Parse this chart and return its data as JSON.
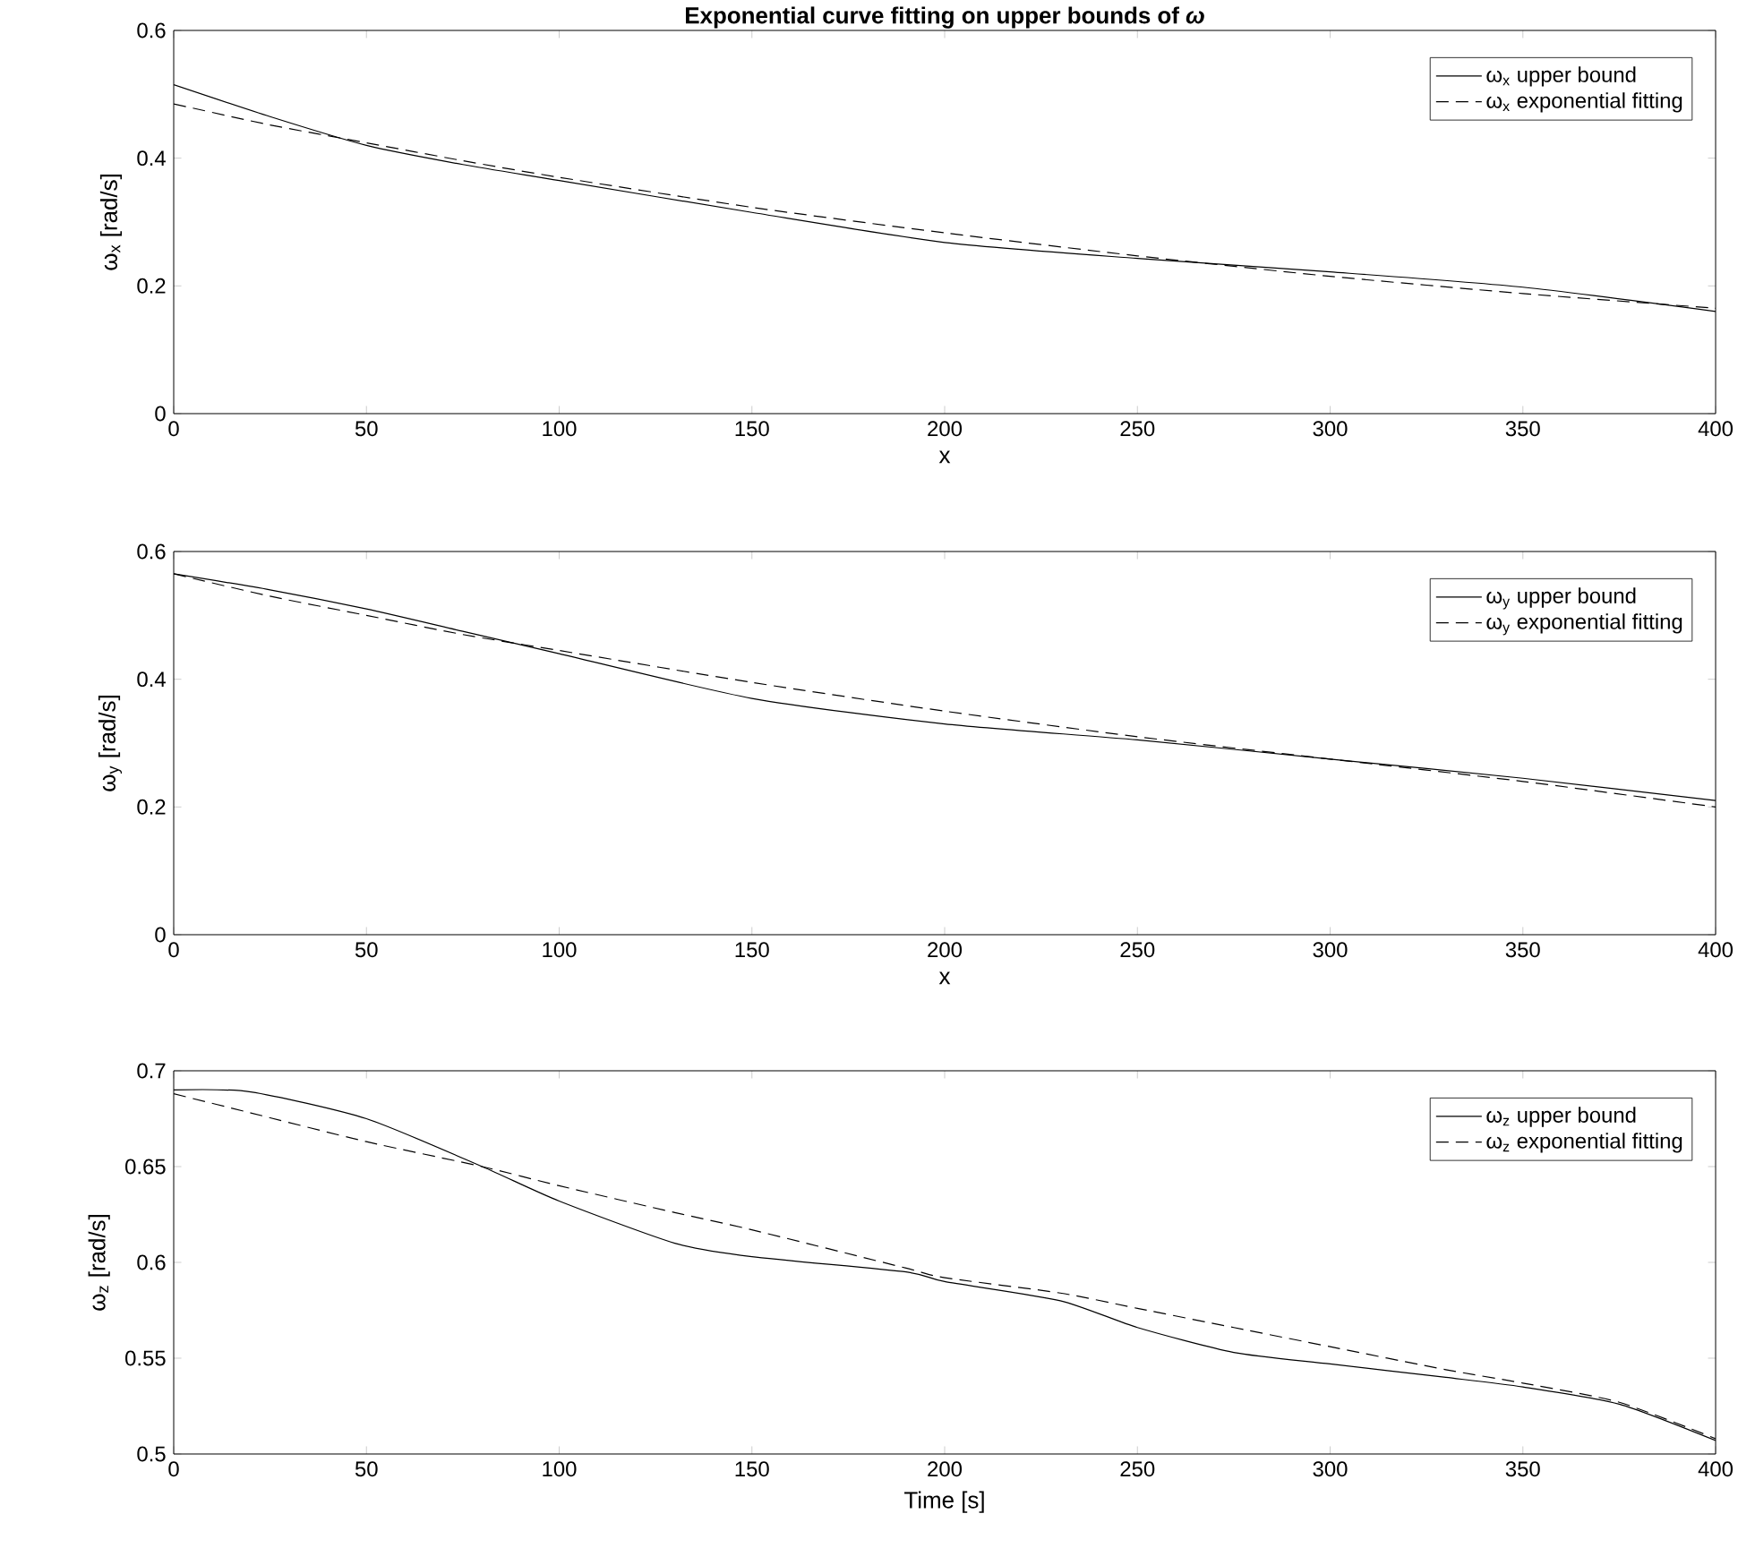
{
  "chart_data": [
    {
      "type": "line",
      "title": "Exponential curve fitting on upper bounds of *ω*",
      "xlabel": "x",
      "ylabel": "ω$_{x}$ [rad/s]",
      "legend": "top right",
      "xlim": [
        0,
        400
      ],
      "ylim": [
        0,
        0.6
      ],
      "xticks": [
        0,
        50,
        100,
        150,
        200,
        250,
        300,
        350,
        400
      ],
      "yticks": [
        0,
        0.2,
        0.4,
        0.6
      ],
      "x": [
        0,
        25,
        50,
        75,
        100,
        150,
        200,
        250,
        300,
        350,
        400
      ],
      "series": [
        {
          "name": "ω$_{x}$ upper bound",
          "color": "#000000",
          "line_style": "solid",
          "values": [
            0.515,
            0.465,
            0.42,
            0.39,
            0.365,
            0.315,
            0.268,
            0.243,
            0.222,
            0.198,
            0.16
          ]
        },
        {
          "name": "ω$_{x}$ exponential fitting",
          "color": "#000000",
          "line_style": "dashed",
          "values": [
            0.485,
            0.452,
            0.424,
            0.396,
            0.37,
            0.323,
            0.283,
            0.247,
            0.215,
            0.188,
            0.165
          ]
        }
      ]
    },
    {
      "type": "line",
      "xlabel": "x",
      "ylabel": "ω$_{y}$ [rad/s]",
      "legend": "top right",
      "xlim": [
        0,
        400
      ],
      "ylim": [
        0,
        0.6
      ],
      "xticks": [
        0,
        50,
        100,
        150,
        200,
        250,
        300,
        350,
        400
      ],
      "yticks": [
        0,
        0.2,
        0.4,
        0.6
      ],
      "x": [
        0,
        25,
        50,
        75,
        100,
        150,
        200,
        250,
        300,
        350,
        400
      ],
      "series": [
        {
          "name": "ω$_{y}$ upper bound",
          "color": "#000000",
          "line_style": "solid",
          "values": [
            0.565,
            0.54,
            0.51,
            0.475,
            0.44,
            0.37,
            0.33,
            0.305,
            0.275,
            0.245,
            0.21
          ]
        },
        {
          "name": "ω$_{y}$ exponential fitting",
          "color": "#000000",
          "line_style": "dashed",
          "values": [
            0.565,
            0.53,
            0.5,
            0.47,
            0.445,
            0.395,
            0.35,
            0.31,
            0.275,
            0.24,
            0.2
          ]
        }
      ]
    },
    {
      "type": "line",
      "xlabel": "Time [s]",
      "ylabel": "ω$_{z}$ [rad/s]",
      "legend": "top right",
      "xlim": [
        0,
        400
      ],
      "ylim": [
        0.5,
        0.7
      ],
      "xticks": [
        0,
        50,
        100,
        150,
        200,
        250,
        300,
        350,
        400
      ],
      "yticks": [
        0.5,
        0.55,
        0.6,
        0.65,
        0.7
      ],
      "x": [
        0,
        20,
        50,
        80,
        100,
        130,
        150,
        190,
        200,
        230,
        250,
        275,
        300,
        330,
        350,
        375,
        400
      ],
      "series": [
        {
          "name": "ω$_{z}$ upper bound",
          "color": "#000000",
          "line_style": "solid",
          "values": [
            0.69,
            0.689,
            0.675,
            0.65,
            0.632,
            0.61,
            0.603,
            0.595,
            0.59,
            0.58,
            0.566,
            0.553,
            0.547,
            0.54,
            0.535,
            0.526,
            0.507
          ]
        },
        {
          "name": "ω$_{z}$ exponential fitting",
          "color": "#000000",
          "line_style": "dashed",
          "values": [
            0.688,
            0.678,
            0.663,
            0.65,
            0.64,
            0.626,
            0.617,
            0.597,
            0.592,
            0.584,
            0.576,
            0.566,
            0.556,
            0.544,
            0.537,
            0.527,
            0.508
          ]
        }
      ]
    }
  ]
}
